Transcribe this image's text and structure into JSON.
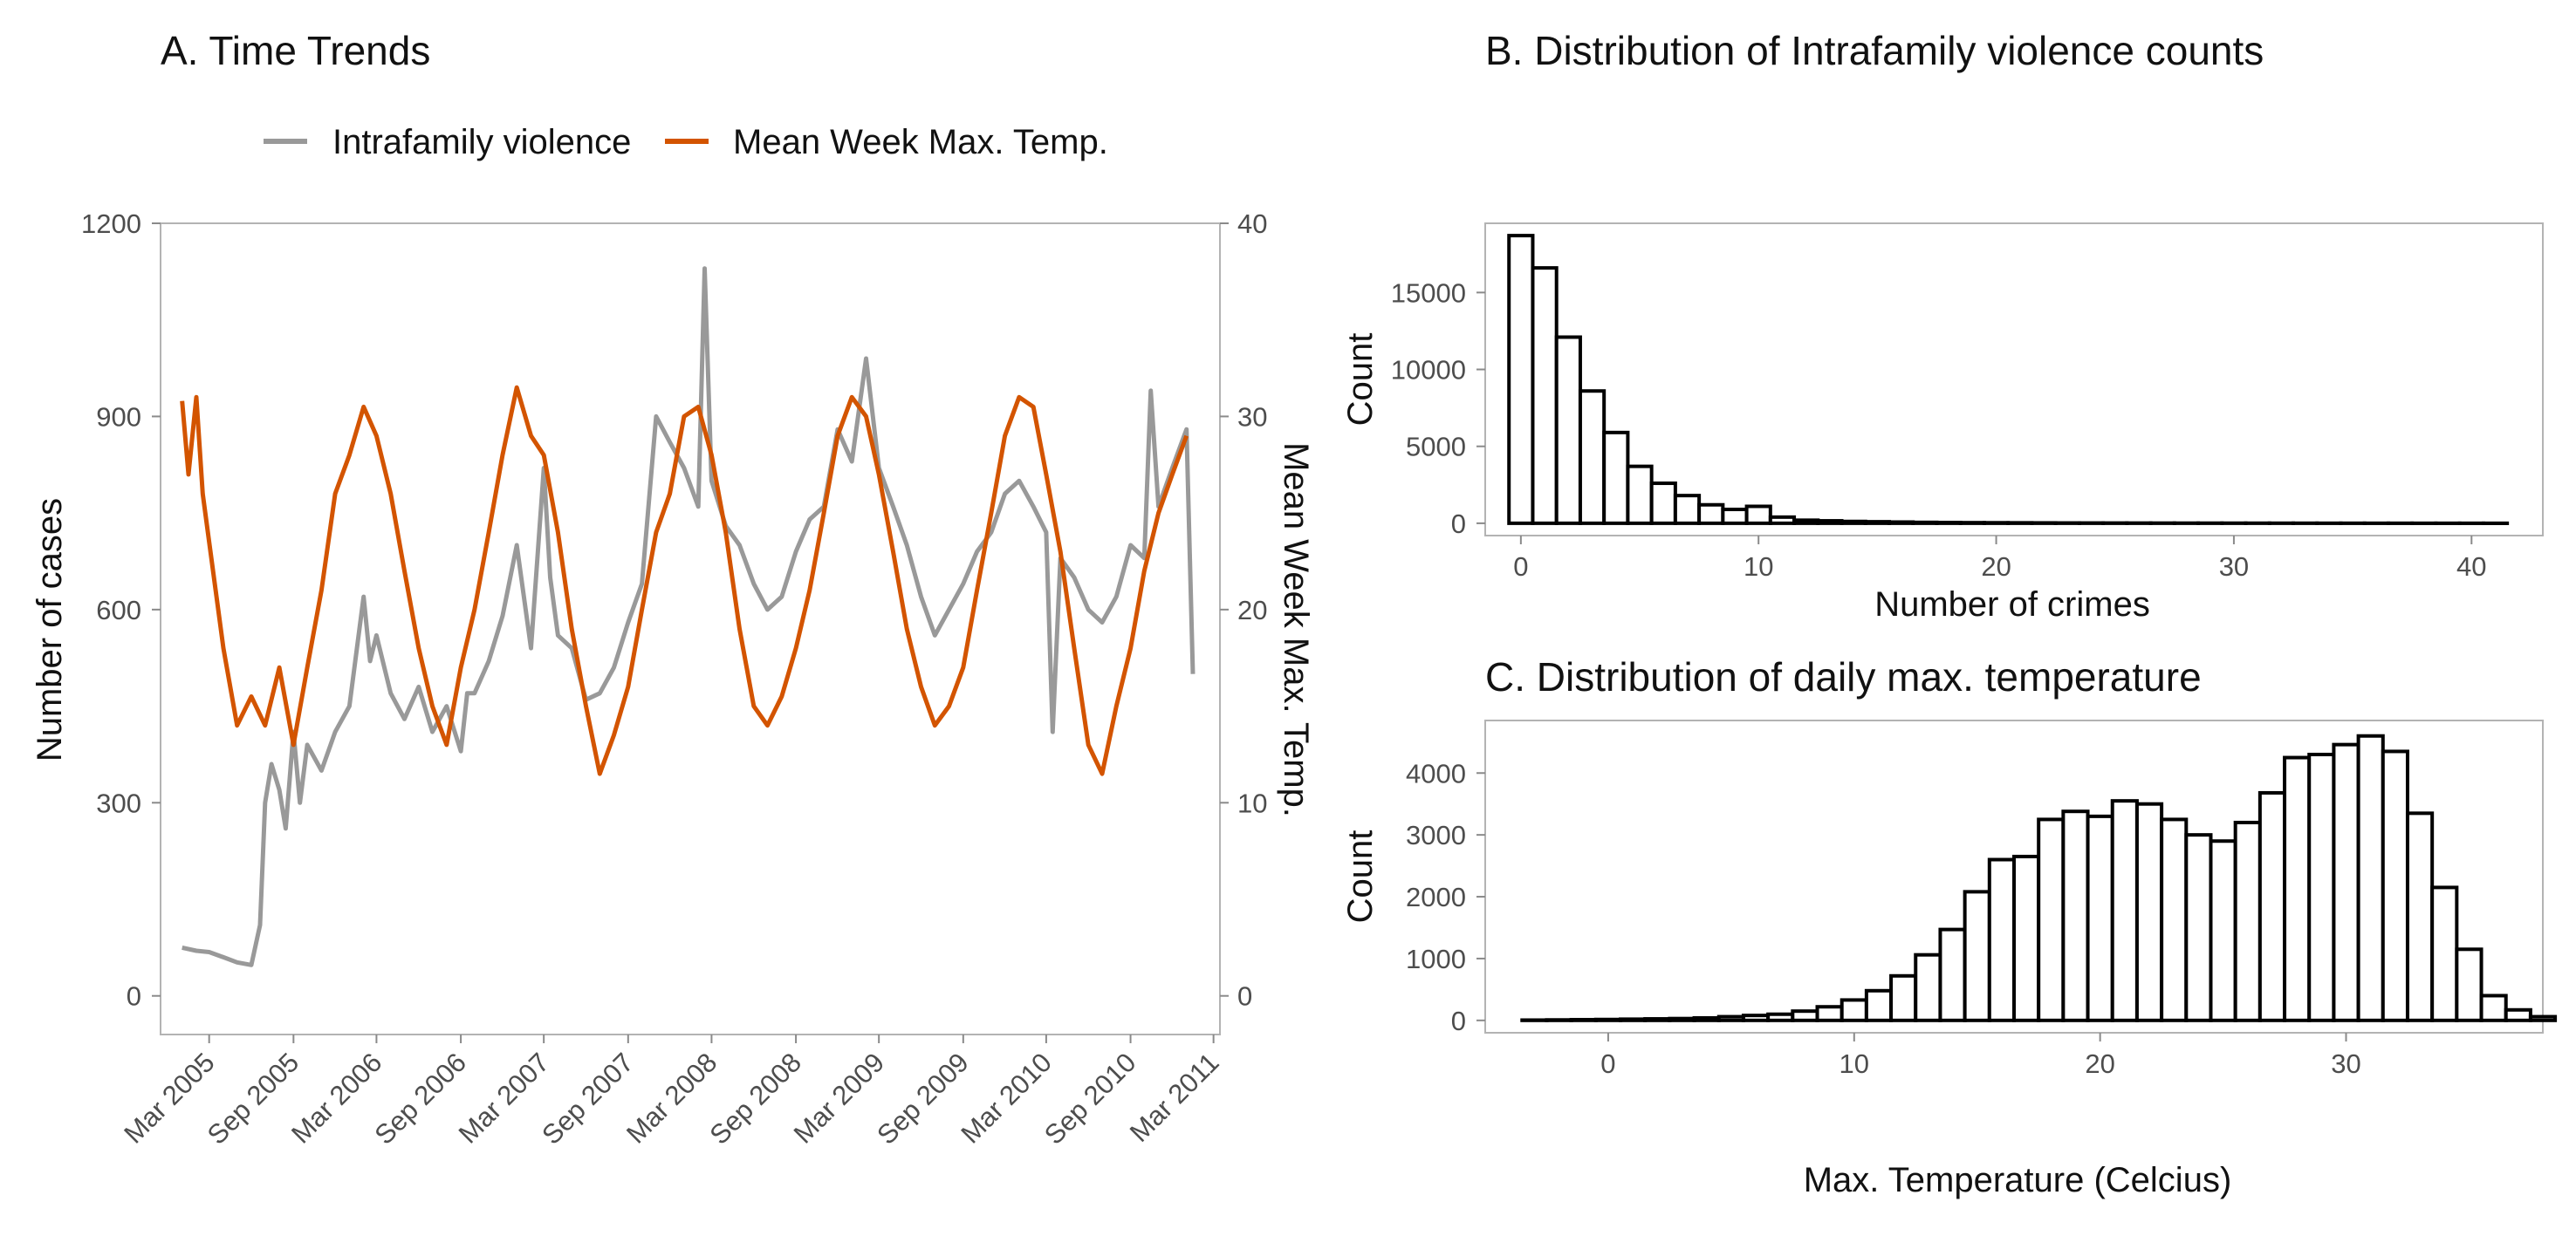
{
  "panels": {
    "a": {
      "title": "A. Time Trends"
    },
    "b": {
      "title": "B. Distribution of Intrafamily violence counts"
    },
    "c": {
      "title": "C. Distribution of daily max. temperature"
    }
  },
  "chart_data": [
    {
      "type": "line",
      "title": "A. Time Trends",
      "ylabel": "Number of cases",
      "y2label": "Mean Week Max. Temp.",
      "ylim": [
        -60,
        1200
      ],
      "y2lim": [
        -2,
        40
      ],
      "yticks": [
        0,
        300,
        600,
        900,
        1200
      ],
      "y2ticks": [
        0,
        10,
        20,
        30,
        40
      ],
      "xlim": [
        "2004-11-15",
        "2011-03-15"
      ],
      "x_tick_labels": [
        "Mar 2005",
        "Sep 2005",
        "Mar 2006",
        "Sep 2006",
        "Mar 2007",
        "Sep 2007",
        "Mar 2008",
        "Sep 2008",
        "Mar 2009",
        "Sep 2009",
        "Mar 2010",
        "Sep 2010",
        "Mar 2011"
      ],
      "x_tick_dates": [
        "2005-03-01",
        "2005-09-01",
        "2006-03-01",
        "2006-09-01",
        "2007-03-01",
        "2007-09-01",
        "2008-03-01",
        "2008-09-01",
        "2009-03-01",
        "2009-09-01",
        "2010-03-01",
        "2010-09-01",
        "2011-03-01"
      ],
      "legend": "top",
      "series": [
        {
          "name": "Intrafamily violence",
          "axis": "left",
          "color": "#999999",
          "points": [
            [
              "2005-01-01",
              75
            ],
            [
              "2005-02-01",
              70
            ],
            [
              "2005-03-01",
              68
            ],
            [
              "2005-04-01",
              60
            ],
            [
              "2005-05-01",
              52
            ],
            [
              "2005-06-01",
              48
            ],
            [
              "2005-06-20",
              110
            ],
            [
              "2005-07-01",
              300
            ],
            [
              "2005-07-15",
              360
            ],
            [
              "2005-08-01",
              320
            ],
            [
              "2005-08-15",
              260
            ],
            [
              "2005-09-01",
              410
            ],
            [
              "2005-09-15",
              300
            ],
            [
              "2005-10-01",
              390
            ],
            [
              "2005-11-01",
              350
            ],
            [
              "2005-12-01",
              410
            ],
            [
              "2006-01-01",
              450
            ],
            [
              "2006-02-01",
              620
            ],
            [
              "2006-02-15",
              520
            ],
            [
              "2006-03-01",
              560
            ],
            [
              "2006-04-01",
              470
            ],
            [
              "2006-05-01",
              430
            ],
            [
              "2006-06-01",
              480
            ],
            [
              "2006-07-01",
              410
            ],
            [
              "2006-08-01",
              450
            ],
            [
              "2006-09-01",
              380
            ],
            [
              "2006-09-15",
              470
            ],
            [
              "2006-10-01",
              470
            ],
            [
              "2006-11-01",
              520
            ],
            [
              "2006-12-01",
              590
            ],
            [
              "2007-01-01",
              700
            ],
            [
              "2007-02-01",
              540
            ],
            [
              "2007-03-01",
              820
            ],
            [
              "2007-03-15",
              650
            ],
            [
              "2007-04-01",
              560
            ],
            [
              "2007-05-01",
              540
            ],
            [
              "2007-06-01",
              460
            ],
            [
              "2007-07-01",
              470
            ],
            [
              "2007-08-01",
              510
            ],
            [
              "2007-09-01",
              580
            ],
            [
              "2007-10-01",
              640
            ],
            [
              "2007-11-01",
              900
            ],
            [
              "2007-12-01",
              860
            ],
            [
              "2008-01-01",
              820
            ],
            [
              "2008-02-01",
              760
            ],
            [
              "2008-02-15",
              1130
            ],
            [
              "2008-03-01",
              800
            ],
            [
              "2008-04-01",
              730
            ],
            [
              "2008-05-01",
              700
            ],
            [
              "2008-06-01",
              640
            ],
            [
              "2008-07-01",
              600
            ],
            [
              "2008-08-01",
              620
            ],
            [
              "2008-09-01",
              690
            ],
            [
              "2008-10-01",
              740
            ],
            [
              "2008-11-01",
              760
            ],
            [
              "2008-12-01",
              880
            ],
            [
              "2009-01-01",
              830
            ],
            [
              "2009-02-01",
              990
            ],
            [
              "2009-03-01",
              820
            ],
            [
              "2009-04-01",
              760
            ],
            [
              "2009-05-01",
              700
            ],
            [
              "2009-06-01",
              620
            ],
            [
              "2009-07-01",
              560
            ],
            [
              "2009-08-01",
              600
            ],
            [
              "2009-09-01",
              640
            ],
            [
              "2009-10-01",
              690
            ],
            [
              "2009-11-01",
              720
            ],
            [
              "2009-12-01",
              780
            ],
            [
              "2010-01-01",
              800
            ],
            [
              "2010-02-01",
              760
            ],
            [
              "2010-03-01",
              720
            ],
            [
              "2010-03-15",
              410
            ],
            [
              "2010-04-01",
              680
            ],
            [
              "2010-05-01",
              650
            ],
            [
              "2010-06-01",
              600
            ],
            [
              "2010-07-01",
              580
            ],
            [
              "2010-08-01",
              620
            ],
            [
              "2010-09-01",
              700
            ],
            [
              "2010-10-01",
              680
            ],
            [
              "2010-10-15",
              940
            ],
            [
              "2010-11-01",
              760
            ],
            [
              "2010-12-01",
              820
            ],
            [
              "2011-01-01",
              880
            ],
            [
              "2011-01-15",
              500
            ]
          ]
        },
        {
          "name": "Mean Week Max. Temp.",
          "axis": "right",
          "color": "#d35400",
          "points": [
            [
              "2005-01-01",
              30.8
            ],
            [
              "2005-01-15",
              27.0
            ],
            [
              "2005-02-01",
              31.0
            ],
            [
              "2005-02-15",
              26.0
            ],
            [
              "2005-03-01",
              23.5
            ],
            [
              "2005-04-01",
              18.0
            ],
            [
              "2005-05-01",
              14.0
            ],
            [
              "2005-06-01",
              15.5
            ],
            [
              "2005-07-01",
              14.0
            ],
            [
              "2005-08-01",
              17.0
            ],
            [
              "2005-09-01",
              13.0
            ],
            [
              "2005-10-01",
              17.0
            ],
            [
              "2005-11-01",
              21.0
            ],
            [
              "2005-12-01",
              26.0
            ],
            [
              "2006-01-01",
              28.0
            ],
            [
              "2006-02-01",
              30.5
            ],
            [
              "2006-03-01",
              29.0
            ],
            [
              "2006-04-01",
              26.0
            ],
            [
              "2006-05-01",
              22.0
            ],
            [
              "2006-06-01",
              18.0
            ],
            [
              "2006-07-01",
              15.0
            ],
            [
              "2006-08-01",
              13.0
            ],
            [
              "2006-09-01",
              17.0
            ],
            [
              "2006-10-01",
              20.0
            ],
            [
              "2006-11-01",
              24.0
            ],
            [
              "2006-12-01",
              28.0
            ],
            [
              "2007-01-01",
              31.5
            ],
            [
              "2007-02-01",
              29.0
            ],
            [
              "2007-03-01",
              28.0
            ],
            [
              "2007-04-01",
              24.0
            ],
            [
              "2007-05-01",
              19.0
            ],
            [
              "2007-06-01",
              15.0
            ],
            [
              "2007-07-01",
              11.5
            ],
            [
              "2007-08-01",
              13.5
            ],
            [
              "2007-09-01",
              16.0
            ],
            [
              "2007-10-01",
              20.0
            ],
            [
              "2007-11-01",
              24.0
            ],
            [
              "2007-12-01",
              26.0
            ],
            [
              "2008-01-01",
              30.0
            ],
            [
              "2008-02-01",
              30.5
            ],
            [
              "2008-03-01",
              28.0
            ],
            [
              "2008-04-01",
              24.0
            ],
            [
              "2008-05-01",
              19.0
            ],
            [
              "2008-06-01",
              15.0
            ],
            [
              "2008-07-01",
              14.0
            ],
            [
              "2008-08-01",
              15.5
            ],
            [
              "2008-09-01",
              18.0
            ],
            [
              "2008-10-01",
              21.0
            ],
            [
              "2008-11-01",
              25.0
            ],
            [
              "2008-12-01",
              29.0
            ],
            [
              "2009-01-01",
              31.0
            ],
            [
              "2009-02-01",
              30.0
            ],
            [
              "2009-03-01",
              27.0
            ],
            [
              "2009-04-01",
              23.0
            ],
            [
              "2009-05-01",
              19.0
            ],
            [
              "2009-06-01",
              16.0
            ],
            [
              "2009-07-01",
              14.0
            ],
            [
              "2009-08-01",
              15.0
            ],
            [
              "2009-09-01",
              17.0
            ],
            [
              "2009-10-01",
              21.0
            ],
            [
              "2009-11-01",
              25.0
            ],
            [
              "2009-12-01",
              29.0
            ],
            [
              "2010-01-01",
              31.0
            ],
            [
              "2010-02-01",
              30.5
            ],
            [
              "2010-03-01",
              27.0
            ],
            [
              "2010-04-01",
              23.0
            ],
            [
              "2010-05-01",
              18.0
            ],
            [
              "2010-06-01",
              13.0
            ],
            [
              "2010-07-01",
              11.5
            ],
            [
              "2010-08-01",
              15.0
            ],
            [
              "2010-09-01",
              18.0
            ],
            [
              "2010-10-01",
              22.0
            ],
            [
              "2010-11-01",
              25.0
            ],
            [
              "2010-12-01",
              27.0
            ],
            [
              "2011-01-01",
              29.0
            ]
          ]
        }
      ]
    },
    {
      "type": "bar",
      "title": "B. Distribution of Intrafamily violence counts",
      "xlabel": "Number of crimes",
      "ylabel": "Count",
      "bin_width": 1,
      "bin_start": -0.5,
      "xlim": [
        -1.5,
        43
      ],
      "ylim": [
        -800,
        19500
      ],
      "xticks": [
        0,
        10,
        20,
        30,
        40
      ],
      "yticks": [
        0,
        5000,
        10000,
        15000
      ],
      "values": [
        18700,
        16600,
        12100,
        8600,
        5900,
        3700,
        2600,
        1800,
        1200,
        900,
        1100,
        400,
        200,
        160,
        120,
        100,
        80,
        60,
        50,
        40,
        35,
        30,
        25,
        20,
        18,
        16,
        14,
        12,
        10,
        9,
        8,
        7,
        6,
        5,
        4,
        4,
        3,
        3,
        2,
        2,
        2,
        1
      ]
    },
    {
      "type": "bar",
      "title": "C. Distribution of daily max. temperature",
      "xlabel": "Max. Temperature (Celcius)",
      "ylabel": "Count",
      "bin_width": 1,
      "bin_start": -3.5,
      "xlim": [
        -5,
        38
      ],
      "ylim": [
        -200,
        4850
      ],
      "xticks": [
        0,
        10,
        20,
        30
      ],
      "yticks": [
        0,
        1000,
        2000,
        3000,
        4000
      ],
      "values": [
        5,
        8,
        12,
        15,
        20,
        25,
        30,
        40,
        60,
        80,
        100,
        150,
        220,
        330,
        480,
        720,
        1060,
        1470,
        2080,
        2600,
        2650,
        3250,
        3380,
        3300,
        3550,
        3500,
        3250,
        3000,
        2900,
        3200,
        3680,
        4250,
        4300,
        4460,
        4600,
        4350,
        3350,
        2150,
        1150,
        400,
        170,
        60
      ]
    }
  ]
}
